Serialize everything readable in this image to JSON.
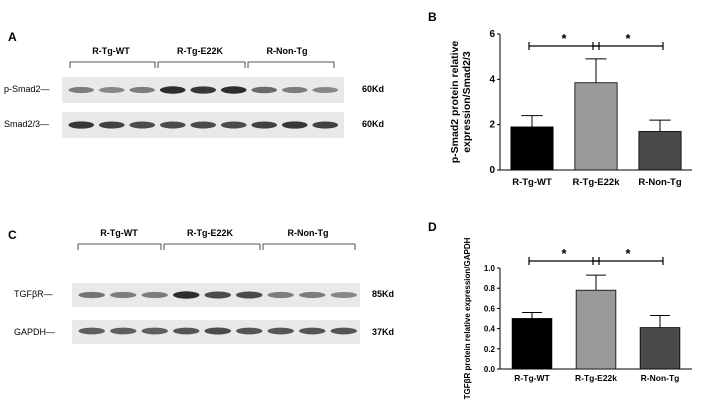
{
  "panels": {
    "A": {
      "letter": "A",
      "groups": [
        "R-Tg-WT",
        "R-Tg-E22K",
        "R-Non-Tg"
      ],
      "rows": [
        {
          "label": "p-Smad2—",
          "size": "60Kd",
          "intensity": [
            0.55,
            0.5,
            0.55,
            0.95,
            0.9,
            0.95,
            0.65,
            0.55,
            0.5
          ]
        },
        {
          "label": "Smad2/3—",
          "size": "60Kd",
          "intensity": [
            0.9,
            0.85,
            0.8,
            0.8,
            0.8,
            0.8,
            0.85,
            0.9,
            0.85
          ]
        }
      ]
    },
    "C": {
      "letter": "C",
      "groups": [
        "R-Tg-WT",
        "R-Tg-E22K",
        "R-Non-Tg"
      ],
      "rows": [
        {
          "label": "TGFβR—",
          "size": "85Kd",
          "intensity": [
            0.6,
            0.55,
            0.55,
            0.95,
            0.8,
            0.8,
            0.55,
            0.55,
            0.5
          ]
        },
        {
          "label": "GAPDH—",
          "size": "37Kd",
          "intensity": [
            0.7,
            0.7,
            0.7,
            0.75,
            0.8,
            0.75,
            0.75,
            0.75,
            0.75
          ]
        }
      ]
    }
  },
  "chart_data": [
    {
      "panel": "B",
      "type": "bar",
      "categories": [
        "R-Tg-WT",
        "R-Tg-E22k",
        "R-Non-Tg"
      ],
      "values": [
        1.9,
        3.85,
        1.7
      ],
      "errors": [
        0.5,
        1.05,
        0.5
      ],
      "colors": [
        "#000000",
        "#999999",
        "#4a4a4a"
      ],
      "ylabel": "p-Smad2 protein relative expression/Smad2/3",
      "ylim": [
        0,
        6
      ],
      "yticks": [
        "0",
        "2",
        "4",
        "6"
      ],
      "significance": [
        {
          "from": 0,
          "to": 1,
          "label": "*"
        },
        {
          "from": 1,
          "to": 2,
          "label": "*"
        }
      ]
    },
    {
      "panel": "D",
      "type": "bar",
      "categories": [
        "R-Tg-WT",
        "R-Tg-E22k",
        "R-Non-Tg"
      ],
      "values": [
        0.5,
        0.78,
        0.41
      ],
      "errors": [
        0.06,
        0.15,
        0.12
      ],
      "colors": [
        "#000000",
        "#999999",
        "#4a4a4a"
      ],
      "ylabel": "TGFβR protein relative expression/GAPDH",
      "ylim": [
        0,
        1
      ],
      "yticks": [
        "0.0",
        "0.2",
        "0.4",
        "0.6",
        "0.8",
        "1.0"
      ],
      "significance": [
        {
          "from": 0,
          "to": 1,
          "label": "*"
        },
        {
          "from": 1,
          "to": 2,
          "label": "*"
        }
      ]
    }
  ]
}
